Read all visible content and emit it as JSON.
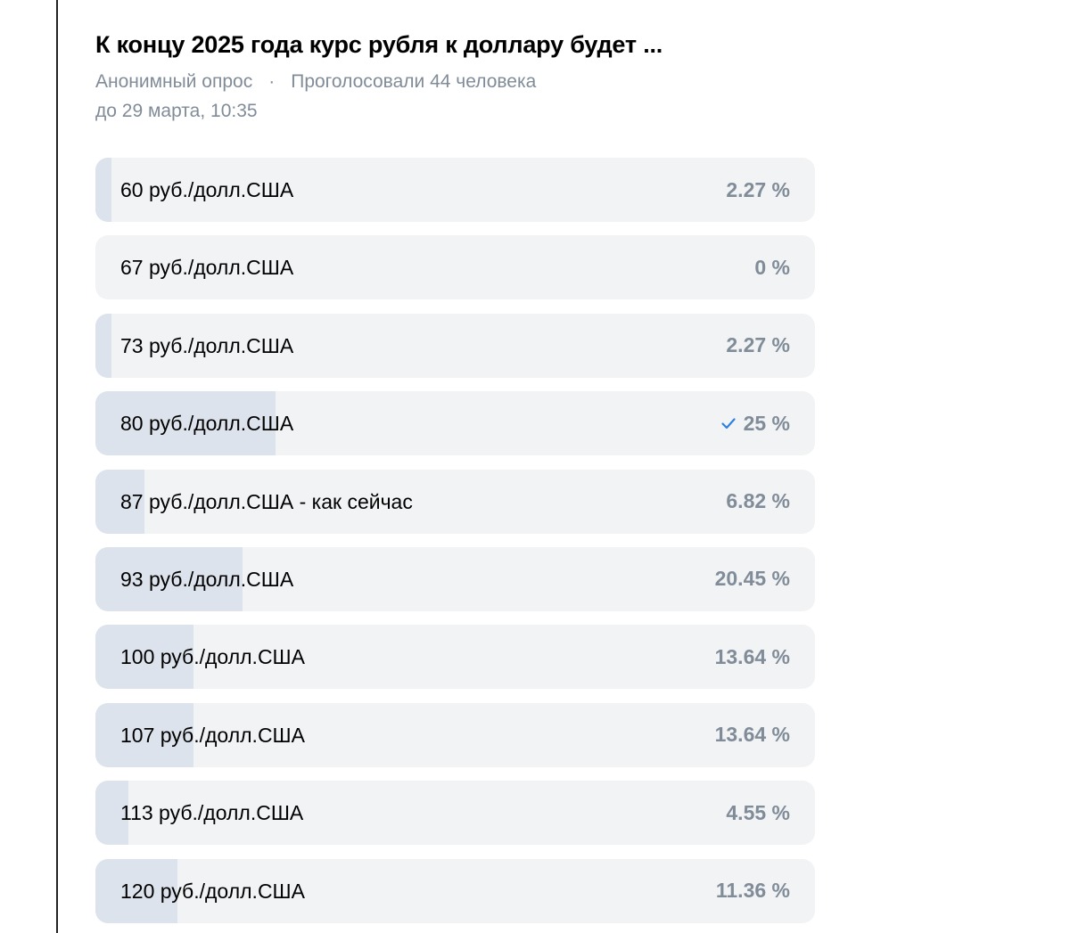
{
  "poll": {
    "title": "К концу 2025 года курс рубля к доллару будет ...",
    "type_label": "Анонимный опрос",
    "separator": "·",
    "votes_label": "Проголосовали 44 человека",
    "deadline": "до 29 марта, 10:35",
    "colors": {
      "fill": "#dde3ec",
      "background": "#f2f3f5",
      "accent": "#2d81e0",
      "secondary_text": "#818c99"
    },
    "options": [
      {
        "label": "60 руб./долл.США",
        "percent_text": "2.27 %",
        "percent": 2.27,
        "voted": false
      },
      {
        "label": "67 руб./долл.США",
        "percent_text": "0 %",
        "percent": 0,
        "voted": false
      },
      {
        "label": "73 руб./долл.США",
        "percent_text": "2.27 %",
        "percent": 2.27,
        "voted": false
      },
      {
        "label": "80 руб./долл.США",
        "percent_text": "25 %",
        "percent": 25,
        "voted": true,
        "check_icon": "checkmark-icon"
      },
      {
        "label": "87 руб./долл.США - как сейчас",
        "percent_text": "6.82 %",
        "percent": 6.82,
        "voted": false
      },
      {
        "label": "93 руб./долл.США",
        "percent_text": "20.45 %",
        "percent": 20.45,
        "voted": false
      },
      {
        "label": "100 руб./долл.США",
        "percent_text": "13.64 %",
        "percent": 13.64,
        "voted": false
      },
      {
        "label": "107 руб./долл.США",
        "percent_text": "13.64 %",
        "percent": 13.64,
        "voted": false
      },
      {
        "label": "113 руб./долл.США",
        "percent_text": "4.55 %",
        "percent": 4.55,
        "voted": false
      },
      {
        "label": "120 руб./долл.США",
        "percent_text": "11.36 %",
        "percent": 11.36,
        "voted": false
      }
    ]
  }
}
